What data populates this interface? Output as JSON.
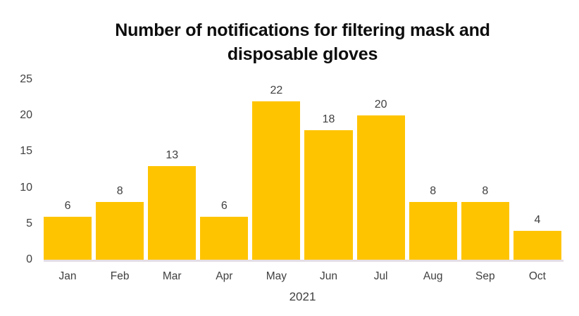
{
  "chart_data": {
    "type": "bar",
    "title": "Number of notifications for filtering mask and disposable gloves",
    "title_lines": [
      "Number of notifications for filtering mask and",
      "disposable gloves"
    ],
    "categories": [
      "Jan",
      "Feb",
      "Mar",
      "Apr",
      "May",
      "Jun",
      "Jul",
      "Aug",
      "Sep",
      "Oct"
    ],
    "values": [
      6,
      8,
      13,
      6,
      22,
      18,
      20,
      8,
      8,
      4
    ],
    "data_labels": [
      "6",
      "8",
      "13",
      "6",
      "22",
      "18",
      "20",
      "8",
      "8",
      "4"
    ],
    "xlabel": "2021",
    "ylabel": "",
    "ylim": [
      0,
      25
    ],
    "yticks": [
      0,
      5,
      10,
      15,
      20,
      25
    ],
    "grid": false,
    "legend": false,
    "colors": {
      "bar": "#FFC400",
      "axis_line": "#E4DEE4",
      "tick_text": "#404040",
      "title_text": "#0D0D0D",
      "background": "#FFFFFF"
    }
  }
}
